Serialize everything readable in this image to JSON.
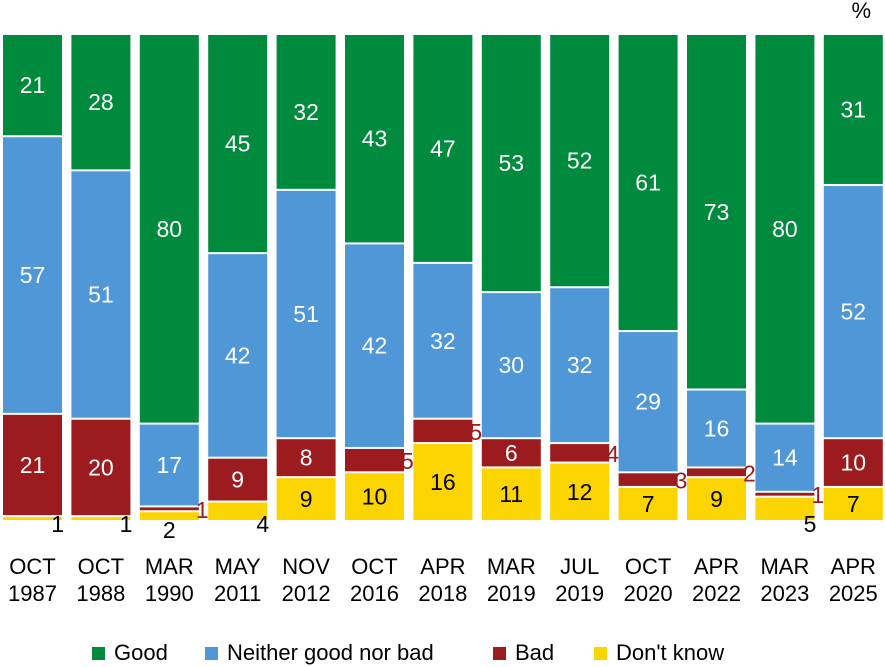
{
  "chart_data": {
    "type": "bar",
    "stacked": true,
    "unit": "%",
    "categories": [
      [
        "OCT",
        "1987"
      ],
      [
        "OCT",
        "1988"
      ],
      [
        "MAR",
        "1990"
      ],
      [
        "MAY",
        "2011"
      ],
      [
        "NOV",
        "2012"
      ],
      [
        "OCT",
        "2016"
      ],
      [
        "APR",
        "2018"
      ],
      [
        "MAR",
        "2019"
      ],
      [
        "JUL",
        "2019"
      ],
      [
        "OCT",
        "2020"
      ],
      [
        "APR",
        "2022"
      ],
      [
        "MAR",
        "2023"
      ],
      [
        "APR",
        "2025"
      ]
    ],
    "series": [
      {
        "name": "Good",
        "color": "#008a3e",
        "values": [
          21,
          28,
          80,
          45,
          32,
          43,
          47,
          53,
          52,
          61,
          73,
          80,
          31
        ]
      },
      {
        "name": "Neither good nor bad",
        "color": "#4f97d6",
        "values": [
          57,
          51,
          17,
          42,
          51,
          42,
          32,
          30,
          32,
          29,
          16,
          14,
          52
        ]
      },
      {
        "name": "Bad",
        "color": "#9b1b1f",
        "values": [
          21,
          20,
          1,
          9,
          8,
          5,
          5,
          6,
          4,
          3,
          2,
          1,
          10
        ]
      },
      {
        "name": "Don't know",
        "color": "#fcd400",
        "values": [
          1,
          1,
          2,
          4,
          9,
          10,
          16,
          11,
          12,
          7,
          9,
          5,
          7
        ]
      }
    ],
    "legend_position": "bottom"
  }
}
